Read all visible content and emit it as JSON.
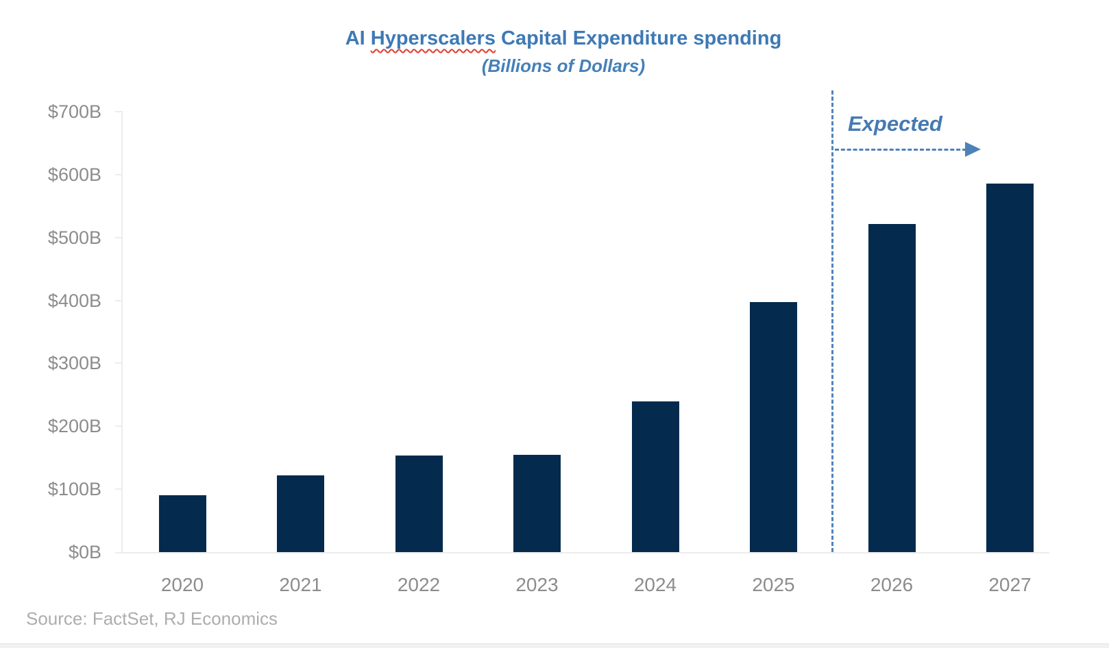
{
  "title": {
    "prefix": "AI ",
    "misspelled_word": "Hyperscalers",
    "suffix": " Capital Expenditure spending",
    "subtitle": "(Billions of Dollars)"
  },
  "annotation": {
    "label": "Expected"
  },
  "source_note": "Source: FactSet, RJ Economics",
  "colors": {
    "bar": "#042A4D",
    "title_text": "#3E79B5",
    "annotation_blue": "#4E81BA",
    "axis_label_gray": "#8C8C8C",
    "axis_line_gray": "#ECECEC",
    "source_gray": "#ADADAD",
    "spellcheck_squiggle_red": "#E03C31"
  },
  "chart_data": {
    "type": "bar",
    "title": "AI Hyperscalers Capital Expenditure spending",
    "subtitle": "(Billions of Dollars)",
    "categories": [
      "2020",
      "2021",
      "2022",
      "2023",
      "2024",
      "2025",
      "2026",
      "2027"
    ],
    "values": [
      90,
      122,
      153,
      155,
      240,
      397,
      521,
      586
    ],
    "unit": "Billions of US Dollars",
    "xlabel": "",
    "ylabel": "",
    "ylim": [
      0,
      700
    ],
    "ytick_step": 100,
    "yticks": [
      "$0B",
      "$100B",
      "$200B",
      "$300B",
      "$400B",
      "$500B",
      "$600B",
      "$700B"
    ],
    "grid": false,
    "legend": "none",
    "expected_annotation": {
      "label": "Expected",
      "applies_to_categories": [
        "2026",
        "2027"
      ],
      "divider_between": [
        "2025",
        "2026"
      ]
    },
    "source": "Source: FactSet, RJ Economics"
  }
}
